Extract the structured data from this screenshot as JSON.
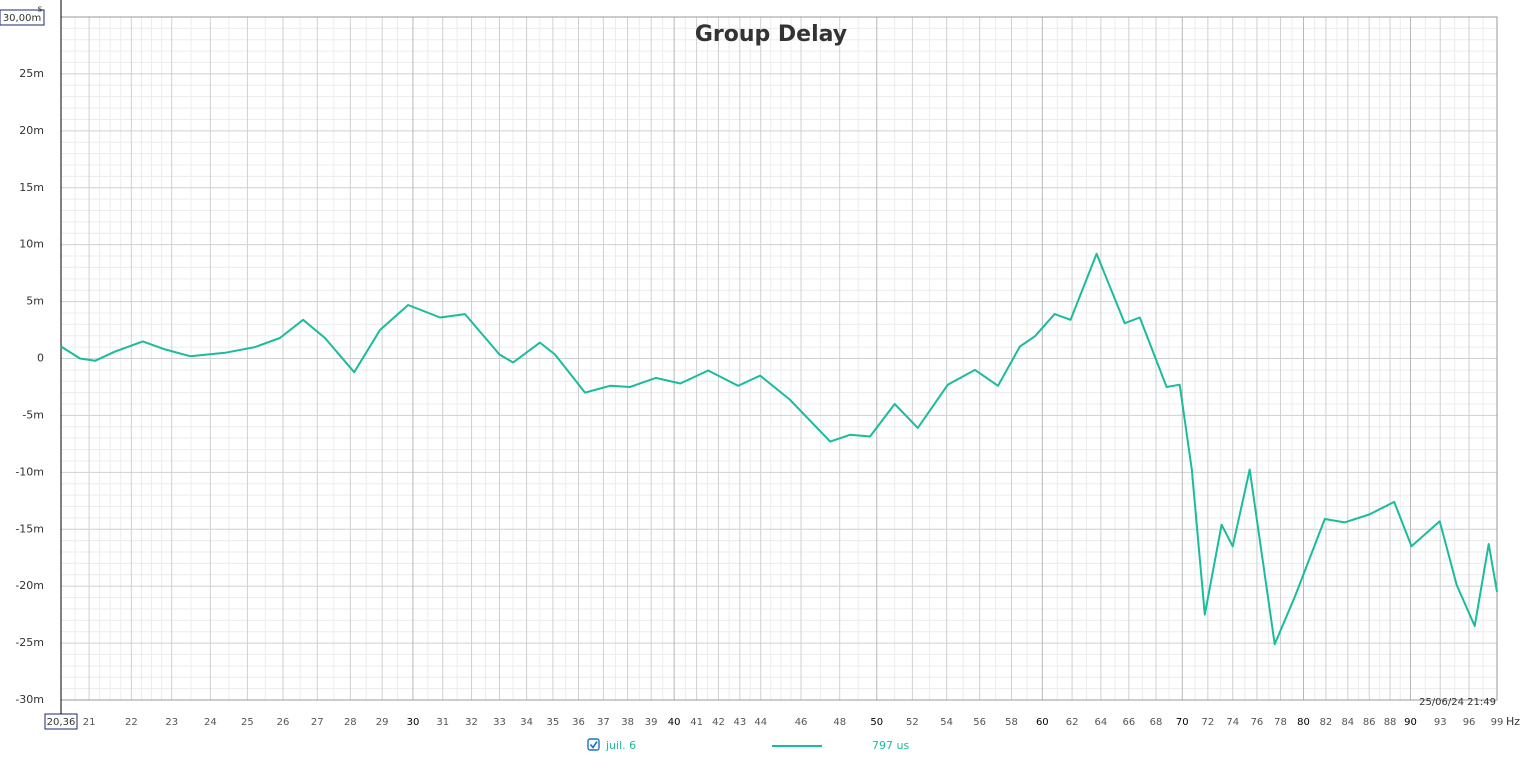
{
  "chart_data": {
    "type": "line",
    "title": "Group Delay",
    "x_unit": "Hz",
    "y_unit": "s",
    "log_x": true,
    "grid": true,
    "xlim": [
      20.36,
      99
    ],
    "ylim": [
      -30,
      30
    ],
    "xticks": [
      {
        "value": 20.36,
        "label": "20,36"
      },
      21,
      22,
      23,
      24,
      25,
      26,
      27,
      28,
      29,
      30,
      31,
      32,
      33,
      34,
      35,
      36,
      37,
      38,
      39,
      40,
      41,
      42,
      43,
      44,
      46,
      48,
      50,
      52,
      54,
      56,
      58,
      60,
      62,
      64,
      66,
      68,
      70,
      72,
      74,
      76,
      78,
      80,
      82,
      84,
      86,
      88,
      90,
      93,
      96,
      99
    ],
    "yticks": [
      {
        "value": -30,
        "label": "-30m"
      },
      {
        "value": -25,
        "label": "-25m"
      },
      {
        "value": -20,
        "label": "-20m"
      },
      {
        "value": -15,
        "label": "-15m"
      },
      {
        "value": -10,
        "label": "-10m"
      },
      {
        "value": -5,
        "label": "-5m"
      },
      0,
      {
        "value": 5,
        "label": "5m"
      },
      {
        "value": 10,
        "label": "10m"
      },
      {
        "value": 15,
        "label": "15m"
      },
      {
        "value": 20,
        "label": "20m"
      },
      {
        "value": 25,
        "label": "25m"
      },
      {
        "value": 30,
        "label": "30,00m"
      }
    ],
    "timestamp": "25/06/24 21:49",
    "x": [
      20.36,
      20.79,
      21.14,
      21.6,
      22.28,
      22.83,
      23.47,
      24.39,
      25.21,
      25.91,
      26.58,
      27.23,
      28.12,
      28.93,
      29.84,
      30.91,
      31.77,
      33.0,
      33.5,
      34.5,
      35.08,
      36.26,
      37.27,
      38.1,
      39.2,
      40.27,
      41.53,
      42.92,
      43.97,
      45.43,
      47.5,
      48.55,
      49.63,
      51.0,
      52.31,
      54.07,
      55.71,
      57.14,
      58.54,
      59.51,
      60.82,
      61.9,
      63.7,
      65.7,
      66.8,
      68.8,
      69.8,
      70.74,
      71.76,
      73.1,
      74.0,
      75.4,
      77.5,
      79.25,
      81.9,
      83.7,
      86.0,
      88.4,
      90.1,
      92.95,
      94.7,
      96.6,
      98.1,
      99
    ],
    "series": [
      {
        "name": "juil. 6",
        "color": "#1abc9c",
        "legend_value": "797 us",
        "values": [
          1.05,
          0,
          -0.2,
          0.6,
          1.5,
          0.8,
          0.2,
          0.5,
          1.0,
          1.8,
          3.4,
          1.8,
          -1.2,
          2.5,
          4.7,
          3.6,
          3.9,
          0.35,
          -0.35,
          1.4,
          0.35,
          -3.0,
          -2.4,
          -2.5,
          -1.7,
          -2.2,
          -1.05,
          -2.4,
          -1.5,
          -3.6,
          -7.3,
          -6.7,
          -6.85,
          -4.0,
          -6.1,
          -2.3,
          -1.0,
          -2.4,
          1.05,
          1.95,
          3.9,
          3.4,
          9.2,
          3.1,
          3.6,
          -2.5,
          -2.3,
          -9.75,
          -22.5,
          -14.6,
          -16.5,
          -9.75,
          -25.1,
          -20.9,
          -14.1,
          -14.4,
          -13.7,
          -12.6,
          -16.5,
          -14.3,
          -19.9,
          -23.5,
          -16.3,
          -20.5
        ]
      }
    ]
  }
}
